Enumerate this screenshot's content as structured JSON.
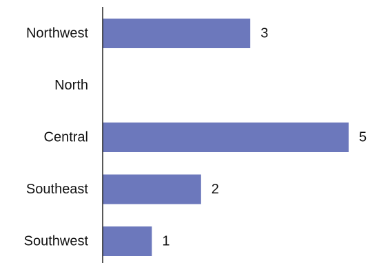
{
  "chart_data": {
    "type": "bar",
    "orientation": "horizontal",
    "categories": [
      "Northwest",
      "North",
      "Central",
      "Southeast",
      "Southwest"
    ],
    "values": [
      3,
      0,
      5,
      2,
      1
    ],
    "data_labels": [
      "3",
      "",
      "5",
      "2",
      "1"
    ],
    "title": "",
    "xlabel": "",
    "ylabel": "",
    "xlim": [
      0,
      5
    ],
    "grid": false,
    "legend": "none",
    "bar_color": "#6c78bc",
    "axis_color": "#222222"
  }
}
